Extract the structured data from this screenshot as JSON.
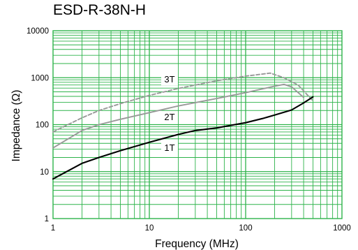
{
  "chart_data": {
    "type": "line",
    "title": "ESD-R-38N-H",
    "xlabel": "Frequency (MHz)",
    "ylabel": "Impedance (Ω)",
    "xscale": "log",
    "yscale": "log",
    "xlim": [
      1,
      1000
    ],
    "ylim": [
      1,
      10000
    ],
    "grid": true,
    "grid_color": "#2db34a",
    "x_ticks": [
      "1",
      "10",
      "100",
      "1000"
    ],
    "y_ticks": [
      "1",
      "10",
      "100",
      "1000",
      "10000"
    ],
    "series": [
      {
        "name": "3T",
        "color": "#999999",
        "dash": "dashed",
        "x": [
          1,
          2,
          3,
          5,
          10,
          20,
          50,
          100,
          180,
          250,
          350,
          500
        ],
        "y": [
          70,
          140,
          200,
          280,
          420,
          590,
          860,
          1080,
          1250,
          1000,
          700,
          320
        ]
      },
      {
        "name": "2T",
        "color": "#999999",
        "dash": "solid",
        "x": [
          1,
          2,
          3,
          5,
          10,
          20,
          50,
          100,
          200,
          250,
          300,
          400
        ],
        "y": [
          32,
          75,
          100,
          130,
          180,
          250,
          360,
          480,
          660,
          720,
          640,
          380
        ]
      },
      {
        "name": "1T",
        "color": "#000000",
        "dash": "solid",
        "x": [
          1,
          2,
          3,
          5,
          10,
          20,
          30,
          50,
          100,
          150,
          200,
          300,
          400,
          500
        ],
        "y": [
          7,
          15,
          20,
          28,
          42,
          62,
          75,
          85,
          110,
          135,
          160,
          205,
          290,
          390
        ]
      }
    ]
  }
}
